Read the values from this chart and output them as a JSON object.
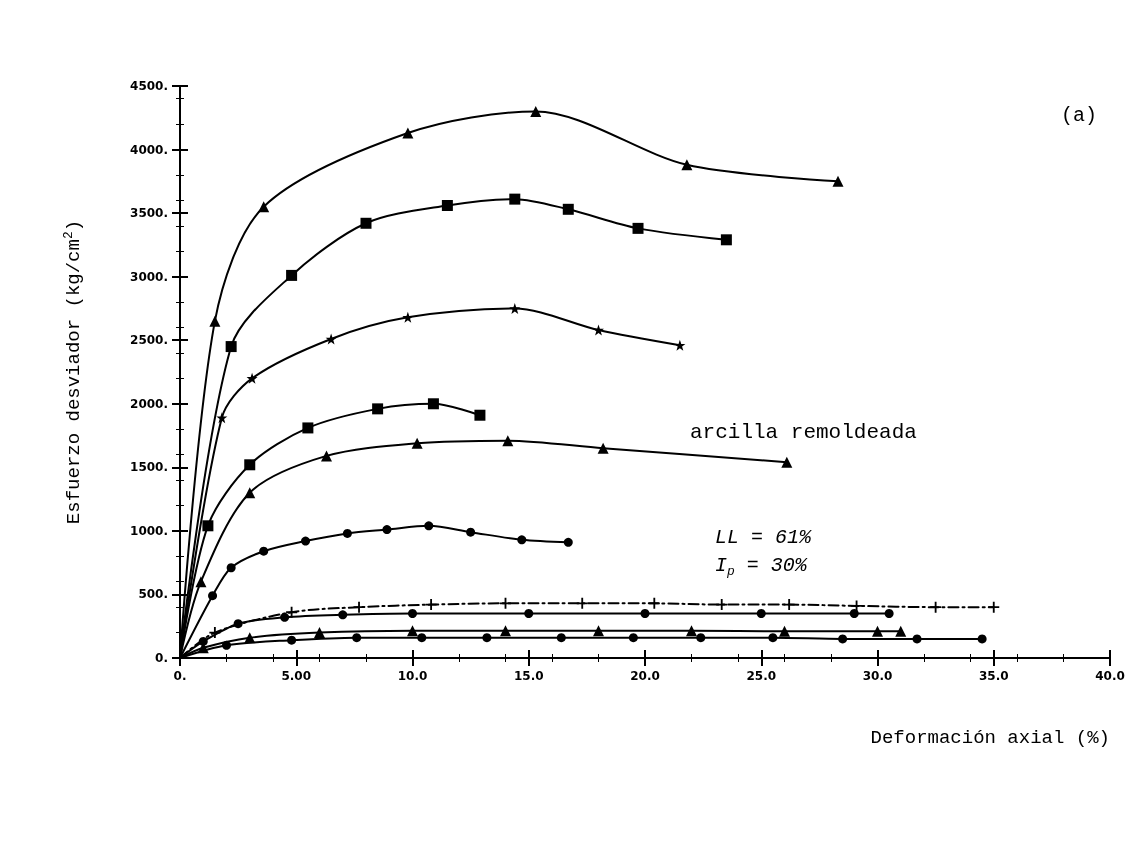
{
  "chart_data": {
    "type": "line",
    "xlabel": "Deformación axial (%)",
    "ylabel": "Esfuerzo desviador (kg/cm$^{2}$)",
    "annotations": [
      "(a)",
      "arcilla remoldeada",
      "LL = 61%",
      "I$_{p}$ = 30%"
    ],
    "xlim": [
      0,
      40
    ],
    "ylim": [
      0,
      4500
    ],
    "xticks": [
      {
        "value": 0,
        "label": "0."
      },
      {
        "value": 5,
        "label": "5.00"
      },
      {
        "value": 10,
        "label": "10.0"
      },
      {
        "value": 15,
        "label": "15.0"
      },
      {
        "value": 20,
        "label": "20.0"
      },
      {
        "value": 25,
        "label": "25.0"
      },
      {
        "value": 30,
        "label": "30.0"
      },
      {
        "value": 35,
        "label": "35.0"
      },
      {
        "value": 40,
        "label": "40.0"
      }
    ],
    "yticks": [
      {
        "value": 0,
        "label": "0."
      },
      {
        "value": 500,
        "label": "500."
      },
      {
        "value": 1000,
        "label": "1000."
      },
      {
        "value": 1500,
        "label": "1500."
      },
      {
        "value": 2000,
        "label": "2000."
      },
      {
        "value": 2500,
        "label": "2500."
      },
      {
        "value": 3000,
        "label": "3000."
      },
      {
        "value": 3500,
        "label": "3500."
      },
      {
        "value": 4000,
        "label": "4000."
      },
      {
        "value": 4500,
        "label": "4500."
      }
    ],
    "grid": false,
    "line_style": "solid",
    "series": [
      {
        "color": "#000000",
        "marker": "triangle",
        "x": [
          0,
          1.5,
          3.6,
          9.8,
          15.3,
          21.8,
          28.3
        ],
        "values": [
          0,
          2650,
          3550,
          4130,
          4300,
          3880,
          3750
        ]
      },
      {
        "color": "#000000",
        "marker": "square",
        "x": [
          0,
          2.2,
          4.8,
          8,
          11.5,
          14.4,
          16.7,
          19.7,
          23.5
        ],
        "values": [
          0,
          2450,
          3010,
          3420,
          3560,
          3610,
          3530,
          3380,
          3290
        ]
      },
      {
        "color": "#000000",
        "marker": "star",
        "x": [
          0,
          1.8,
          3.1,
          6.5,
          9.8,
          14.4,
          18,
          21.5
        ],
        "values": [
          0,
          1890,
          2200,
          2510,
          2680,
          2750,
          2580,
          2460
        ]
      },
      {
        "color": "#000000",
        "marker": "square",
        "x": [
          0,
          1.2,
          3,
          5.5,
          8.5,
          10.9,
          12.9
        ],
        "values": [
          0,
          1040,
          1520,
          1810,
          1960,
          2000,
          1910
        ]
      },
      {
        "color": "#000000",
        "marker": "triangle",
        "x": [
          0,
          0.9,
          3,
          6.3,
          10.2,
          14.1,
          18.2,
          26.1
        ],
        "values": [
          0,
          600,
          1300,
          1590,
          1690,
          1710,
          1650,
          1540
        ]
      },
      {
        "color": "#000000",
        "marker": "circle",
        "x": [
          0,
          1.4,
          2.2,
          3.6,
          5.4,
          7.2,
          8.9,
          10.7,
          12.5,
          14.7,
          16.7
        ],
        "values": [
          0,
          490,
          710,
          840,
          920,
          980,
          1010,
          1040,
          990,
          930,
          910
        ]
      },
      {
        "color": "#000000",
        "marker": "cross",
        "line_style": "dashed",
        "x": [
          0,
          1.5,
          4.8,
          7.7,
          10.8,
          14,
          17.3,
          20.4,
          23.3,
          26.2,
          29.1,
          32.5,
          35
        ],
        "values": [
          0,
          200,
          360,
          400,
          420,
          430,
          430,
          430,
          420,
          420,
          410,
          400,
          400
        ]
      },
      {
        "color": "#000000",
        "marker": "circle",
        "x": [
          0,
          1,
          2.5,
          4.5,
          7,
          10,
          15,
          20,
          25,
          29,
          30.5
        ],
        "values": [
          0,
          130,
          270,
          320,
          340,
          350,
          350,
          350,
          350,
          350,
          350
        ]
      },
      {
        "color": "#000000",
        "marker": "triangle",
        "x": [
          0,
          1,
          3,
          6,
          10,
          14,
          18,
          22,
          26,
          30,
          31
        ],
        "values": [
          0,
          80,
          160,
          200,
          215,
          215,
          215,
          215,
          210,
          210,
          210
        ]
      },
      {
        "color": "#000000",
        "marker": "circle",
        "x": [
          0,
          2,
          4.8,
          7.6,
          10.4,
          13.2,
          16.4,
          19.5,
          22.4,
          25.5,
          28.5,
          31.7,
          34.5
        ],
        "values": [
          0,
          100,
          140,
          160,
          160,
          160,
          160,
          160,
          160,
          160,
          150,
          150,
          150
        ]
      }
    ]
  }
}
